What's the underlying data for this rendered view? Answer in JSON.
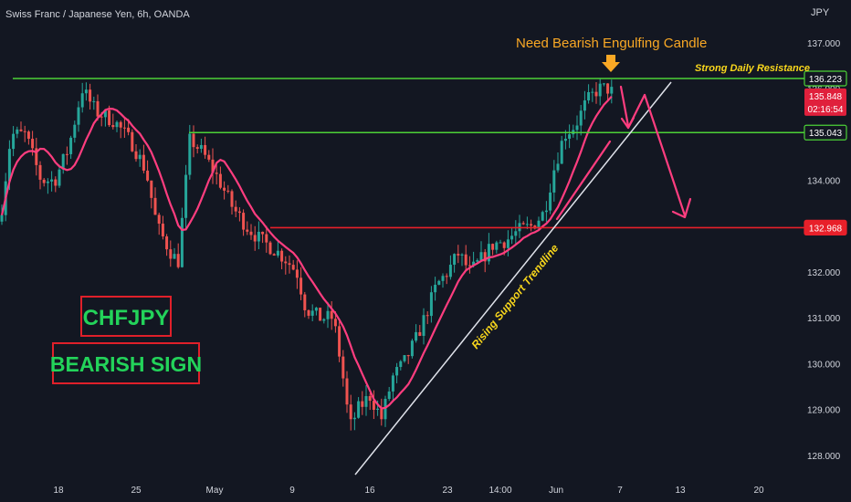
{
  "header": {
    "symbol": "Swiss Franc / Japanese Yen, 6h, OANDA",
    "currency": "JPY"
  },
  "chart_data": {
    "type": "candlestick",
    "y_axis": {
      "ticks": [
        137.0,
        136.0,
        135.0,
        134.0,
        133.0,
        132.0,
        131.0,
        130.0,
        129.0,
        128.0
      ],
      "tick_labels": [
        "137.000",
        "136.000",
        "135.000",
        "134.000",
        "133.000",
        "132.000",
        "131.000",
        "130.000",
        "129.000",
        "128.000"
      ]
    },
    "x_axis": {
      "tick_labels": [
        "18",
        "25",
        "May",
        "9",
        "16",
        "23",
        "14:00",
        "Jun",
        "7",
        "13",
        "20"
      ]
    },
    "price_levels": [
      {
        "label": "136.223",
        "value": 136.223,
        "color": "#4cd137"
      },
      {
        "label": "135.043",
        "value": 135.043,
        "color": "#4cd137"
      },
      {
        "label": "132.968",
        "value": 132.968,
        "color": "#e8202a"
      }
    ],
    "current_price": {
      "label": "135.848",
      "countdown": "02:16:54",
      "value": 135.848,
      "color": "#e0203c"
    },
    "annotations": {
      "title": "Need Bearish Engulfing Candle",
      "resistance": "Strong Daily Resistance",
      "trendline": "Rising Support Trendline",
      "badge_pair": "CHFJPY",
      "badge_signal": "BEARISH SIGN"
    },
    "colors": {
      "up": "#26a69a",
      "down": "#ef5350",
      "ma": "#ff3d7f",
      "annotation": "#f9a825",
      "badge_text": "#23d35a",
      "badge_border": "#e0202a"
    }
  }
}
